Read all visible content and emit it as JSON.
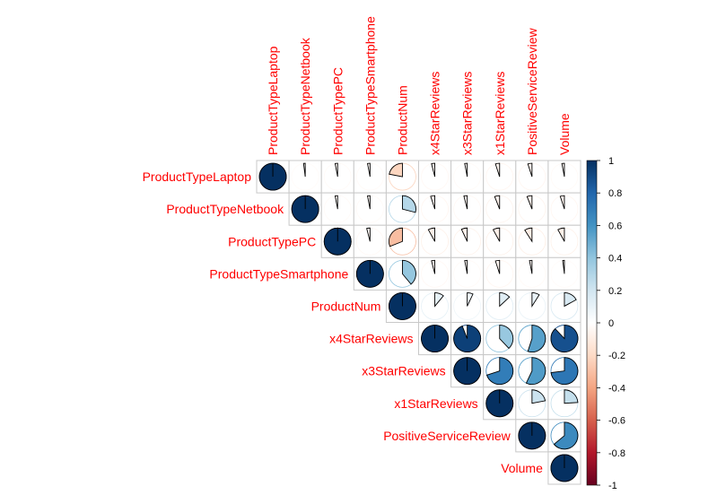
{
  "chart_data": {
    "type": "heatmap",
    "style": "corrplot-upper-pie",
    "variables": [
      "ProductTypeLaptop",
      "ProductTypeNetbook",
      "ProductTypePC",
      "ProductTypeSmartphone",
      "ProductNum",
      "x4StarReviews",
      "x3StarReviews",
      "x1StarReviews",
      "PositiveServiceReview",
      "Volume"
    ],
    "matrix": [
      [
        1.0,
        -0.02,
        -0.03,
        -0.03,
        -0.22,
        -0.04,
        -0.03,
        -0.05,
        -0.05,
        -0.03
      ],
      [
        -0.02,
        1.0,
        -0.03,
        -0.03,
        0.29,
        -0.05,
        -0.04,
        -0.06,
        -0.06,
        -0.05
      ],
      [
        -0.03,
        -0.03,
        1.0,
        -0.04,
        -0.31,
        -0.08,
        -0.07,
        -0.08,
        -0.09,
        -0.08
      ],
      [
        -0.03,
        -0.03,
        -0.04,
        1.0,
        0.39,
        -0.04,
        -0.03,
        -0.05,
        -0.03,
        -0.02
      ],
      [
        -0.22,
        0.29,
        -0.31,
        0.39,
        1.0,
        0.11,
        0.07,
        0.13,
        0.09,
        0.17
      ],
      [
        -0.04,
        -0.05,
        -0.08,
        -0.04,
        0.11,
        1.0,
        0.94,
        0.38,
        0.55,
        0.88
      ],
      [
        -0.03,
        -0.04,
        -0.07,
        -0.03,
        0.07,
        0.94,
        1.0,
        0.7,
        0.57,
        0.73
      ],
      [
        -0.05,
        -0.06,
        -0.08,
        -0.05,
        0.13,
        0.38,
        0.7,
        1.0,
        0.22,
        0.24
      ],
      [
        -0.05,
        -0.06,
        -0.09,
        -0.03,
        0.09,
        0.55,
        0.57,
        0.22,
        1.0,
        0.64
      ],
      [
        -0.03,
        -0.05,
        -0.08,
        -0.02,
        0.17,
        0.88,
        0.73,
        0.24,
        0.64,
        1.0
      ]
    ],
    "colorbar": {
      "range": [
        -1,
        1
      ],
      "ticks": [
        "1",
        "0.8",
        "0.6",
        "0.4",
        "0.2",
        "0",
        "-0.2",
        "-0.4",
        "-0.6",
        "-0.8",
        "-1"
      ]
    },
    "label_color": "#ff0000",
    "palette": [
      "#67001F",
      "#B2182B",
      "#D6604D",
      "#F4A582",
      "#FDDBC7",
      "#FFFFFF",
      "#D1E5F0",
      "#92C5DE",
      "#4393C3",
      "#2166AC",
      "#053061"
    ],
    "grid_color": "#c8c8c8"
  }
}
